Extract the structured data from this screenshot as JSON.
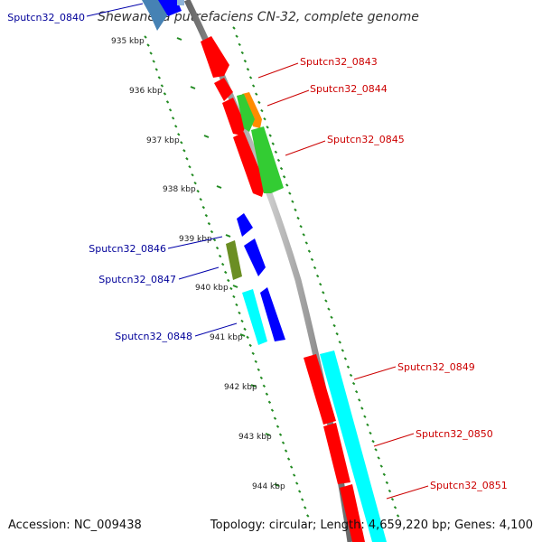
{
  "title": "Shewanella putrefaciens CN-32, complete genome",
  "footer": {
    "accession": "Accession: NC_009438",
    "summary": "Topology: circular; Length: 4,659,220 bp; Genes: 4,100"
  },
  "colors": {
    "forward_label": "#cc0000",
    "reverse_label": "#000099",
    "backbone": "#888888",
    "tick": "#228b22",
    "gene_red": "#ff0000",
    "gene_green": "#33cc33",
    "gene_orange": "#ff8c00",
    "gene_blue": "#0000ff",
    "gene_cyan": "#00ffff",
    "gene_olive": "#6b8e23"
  },
  "axis": {
    "unit": "kbp",
    "ticks": [
      {
        "label": "935 kbp"
      },
      {
        "label": "936 kbp"
      },
      {
        "label": "937 kbp"
      },
      {
        "label": "938 kbp"
      },
      {
        "label": "939 kbp"
      },
      {
        "label": "940 kbp"
      },
      {
        "label": "941 kbp"
      },
      {
        "label": "942 kbp"
      },
      {
        "label": "943 kbp"
      },
      {
        "label": "944 kbp"
      }
    ]
  },
  "genes": [
    {
      "id": "Sputcn32_0840",
      "strand": "reverse",
      "color": "#1e90ff"
    },
    {
      "id": "Sputcn32_0843",
      "strand": "forward",
      "color": "#ff0000"
    },
    {
      "id": "Sputcn32_0844",
      "strand": "forward",
      "color": "#ff8c00"
    },
    {
      "id": "Sputcn32_0845",
      "strand": "forward",
      "color": "#33cc33"
    },
    {
      "id": "Sputcn32_0846",
      "strand": "reverse",
      "color": "#0000ff"
    },
    {
      "id": "Sputcn32_0847",
      "strand": "reverse",
      "color": "#6b8e23"
    },
    {
      "id": "Sputcn32_0848",
      "strand": "reverse",
      "color": "#00ffff"
    },
    {
      "id": "Sputcn32_0849",
      "strand": "forward",
      "color": "#ff0000"
    },
    {
      "id": "Sputcn32_0850",
      "strand": "forward",
      "color": "#ff0000"
    },
    {
      "id": "Sputcn32_0851",
      "strand": "forward",
      "color": "#00ffff"
    }
  ]
}
